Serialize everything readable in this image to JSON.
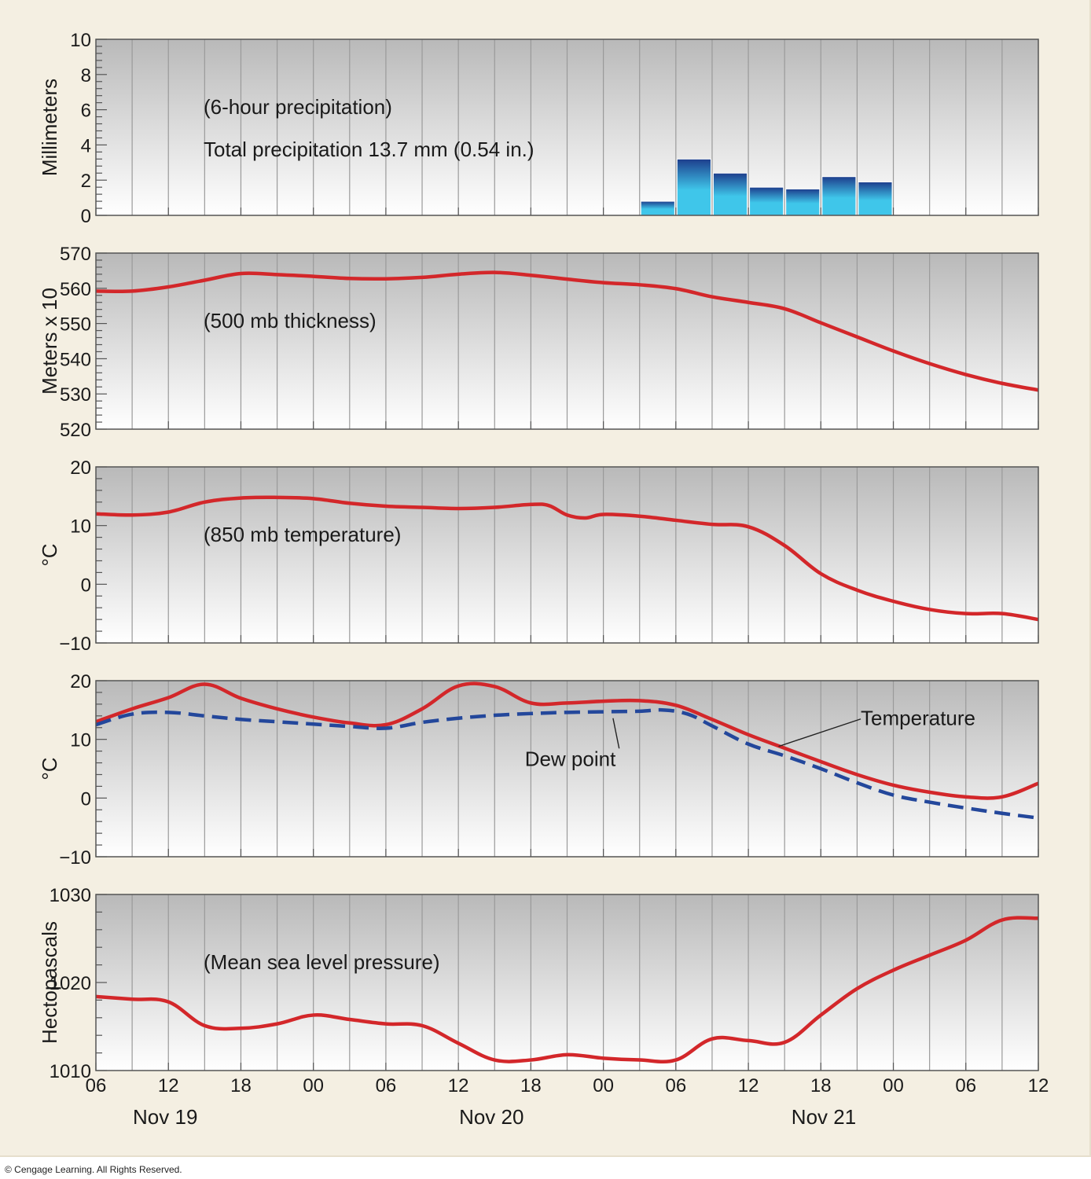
{
  "copyright": "© Cengage Learning. All Rights Reserved.",
  "colors": {
    "panel_top": "#b9b9b9",
    "panel_bottom": "#ffffff",
    "grid": "#9a9a9a",
    "red_line": "#d3272a",
    "dew_line": "#23479b",
    "bar_top": "#1d3d8c",
    "bar_bottom": "#3fc6ea"
  },
  "chart_data": {
    "x_axis": {
      "tick_labels": [
        "06",
        "12",
        "18",
        "00",
        "06",
        "12",
        "18",
        "00",
        "06",
        "12",
        "18",
        "00",
        "06",
        "12"
      ],
      "date_labels": [
        {
          "label": "Nov 19",
          "at_hour": 12
        },
        {
          "label": "Nov 20",
          "at_hour": 39
        },
        {
          "label": "Nov 21",
          "at_hour": 66.5
        }
      ],
      "range_hours": [
        6,
        84
      ],
      "minor_grid_hours": 3
    },
    "panels": [
      {
        "id": "precip",
        "type": "bar",
        "ylabel": "Millimeters",
        "ylim": [
          0,
          10
        ],
        "yticks": [
          "0",
          "2",
          "4",
          "6",
          "8",
          "10"
        ],
        "annotations": [
          "(6-hour precipitation)",
          "Total precipitation 13.7 mm (0.54 in.)"
        ],
        "bars": [
          {
            "x": [
              51,
              54
            ],
            "value": 0.8
          },
          {
            "x": [
              54,
              57
            ],
            "value": 3.2
          },
          {
            "x": [
              57,
              60
            ],
            "value": 2.4
          },
          {
            "x": [
              60,
              63
            ],
            "value": 1.6
          },
          {
            "x": [
              63,
              66
            ],
            "value": 1.5
          },
          {
            "x": [
              66,
              69
            ],
            "value": 2.2
          },
          {
            "x": [
              69,
              72
            ],
            "value": 1.9
          }
        ]
      },
      {
        "id": "thickness",
        "type": "line",
        "ylabel": "Meters x 10",
        "ylim": [
          520,
          570
        ],
        "yticks": [
          "520",
          "530",
          "540",
          "550",
          "560",
          "570"
        ],
        "annotations": [
          "(500 mb thickness)"
        ],
        "series": [
          {
            "style": "solid",
            "points": [
              [
                6,
                559.2
              ],
              [
                9,
                559.2
              ],
              [
                12,
                560.4
              ],
              [
                15,
                562.3
              ],
              [
                18,
                564.2
              ],
              [
                21,
                563.9
              ],
              [
                24,
                563.4
              ],
              [
                27,
                562.8
              ],
              [
                30,
                562.7
              ],
              [
                33,
                563.1
              ],
              [
                36,
                564.0
              ],
              [
                39,
                564.5
              ],
              [
                42,
                563.7
              ],
              [
                45,
                562.6
              ],
              [
                48,
                561.6
              ],
              [
                51,
                561.0
              ],
              [
                54,
                559.9
              ],
              [
                57,
                557.6
              ],
              [
                60,
                556.0
              ],
              [
                63,
                554.2
              ],
              [
                66,
                550.2
              ],
              [
                69,
                546.2
              ],
              [
                72,
                542.2
              ],
              [
                75,
                538.6
              ],
              [
                78,
                535.5
              ],
              [
                81,
                533.0
              ],
              [
                84,
                531.1
              ]
            ]
          }
        ]
      },
      {
        "id": "t850",
        "type": "line",
        "ylabel": "°C",
        "ylim": [
          -10,
          20
        ],
        "yticks": [
          "−10",
          "0",
          "10",
          "20"
        ],
        "annotations": [
          "(850 mb temperature)"
        ],
        "series": [
          {
            "style": "solid",
            "points": [
              [
                6,
                12
              ],
              [
                9,
                11.8
              ],
              [
                12,
                12.3
              ],
              [
                15,
                14
              ],
              [
                18,
                14.7
              ],
              [
                21,
                14.8
              ],
              [
                24,
                14.6
              ],
              [
                27,
                13.8
              ],
              [
                30,
                13.3
              ],
              [
                33,
                13.1
              ],
              [
                36,
                12.9
              ],
              [
                39,
                13.1
              ],
              [
                42,
                13.6
              ],
              [
                43.5,
                13.4
              ],
              [
                45,
                11.8
              ],
              [
                46.5,
                11.3
              ],
              [
                48,
                11.9
              ],
              [
                51,
                11.6
              ],
              [
                54,
                10.9
              ],
              [
                57,
                10.2
              ],
              [
                60,
                9.8
              ],
              [
                63,
                6.6
              ],
              [
                66,
                1.8
              ],
              [
                69,
                -1
              ],
              [
                72,
                -2.9
              ],
              [
                75,
                -4.3
              ],
              [
                78,
                -5
              ],
              [
                81,
                -5
              ],
              [
                84,
                -6
              ]
            ]
          }
        ]
      },
      {
        "id": "surface",
        "type": "line",
        "ylabel": "°C",
        "ylim": [
          -10,
          20
        ],
        "yticks": [
          "−10",
          "0",
          "10",
          "20"
        ],
        "annotations": [],
        "labels": [
          {
            "text": "Temperature",
            "at": [
              69.3,
              12.4
            ],
            "pointer_to": [
              62.5,
              8.8
            ]
          },
          {
            "text": "Dew point",
            "at": [
              41.5,
              5.5
            ],
            "pointer_to": [
              48.8,
              13.6
            ]
          }
        ],
        "series": [
          {
            "name": "Temperature",
            "style": "solid",
            "points": [
              [
                6,
                13
              ],
              [
                9,
                15.2
              ],
              [
                12,
                17.1
              ],
              [
                15,
                19.4
              ],
              [
                18,
                17
              ],
              [
                21,
                15.2
              ],
              [
                24,
                13.8
              ],
              [
                27,
                12.8
              ],
              [
                30,
                12.5
              ],
              [
                33,
                15.2
              ],
              [
                36,
                19.1
              ],
              [
                39,
                19
              ],
              [
                42,
                16.2
              ],
              [
                45,
                16.2
              ],
              [
                48,
                16.5
              ],
              [
                51,
                16.6
              ],
              [
                54,
                15.8
              ],
              [
                57,
                13.4
              ],
              [
                60,
                10.8
              ],
              [
                63,
                8.5
              ],
              [
                66,
                6.2
              ],
              [
                69,
                4
              ],
              [
                72,
                2.2
              ],
              [
                75,
                1
              ],
              [
                78,
                0.2
              ],
              [
                81,
                0.2
              ],
              [
                84,
                2.5
              ]
            ]
          },
          {
            "name": "Dew point",
            "style": "dashed",
            "points": [
              [
                6,
                12.5
              ],
              [
                9,
                14.3
              ],
              [
                12,
                14.6
              ],
              [
                15,
                14
              ],
              [
                18,
                13.4
              ],
              [
                21,
                13
              ],
              [
                24,
                12.6
              ],
              [
                27,
                12.2
              ],
              [
                30,
                11.9
              ],
              [
                33,
                12.9
              ],
              [
                36,
                13.6
              ],
              [
                39,
                14.1
              ],
              [
                42,
                14.4
              ],
              [
                45,
                14.6
              ],
              [
                48,
                14.7
              ],
              [
                51,
                14.8
              ],
              [
                53,
                15
              ],
              [
                55,
                14.3
              ],
              [
                57,
                12.3
              ],
              [
                60,
                9.2
              ],
              [
                63,
                7.2
              ],
              [
                66,
                5
              ],
              [
                69,
                2.6
              ],
              [
                72,
                0.5
              ],
              [
                75,
                -0.7
              ],
              [
                78,
                -1.7
              ],
              [
                81,
                -2.6
              ],
              [
                84,
                -3.4
              ]
            ]
          }
        ]
      },
      {
        "id": "mslp",
        "type": "line",
        "ylabel": "Hectopascals",
        "ylim": [
          1010,
          1030
        ],
        "yticks": [
          "1010",
          "1020",
          "1030"
        ],
        "annotations": [
          "(Mean sea level pressure)"
        ],
        "series": [
          {
            "style": "solid",
            "points": [
              [
                6,
                1018.4
              ],
              [
                9,
                1018.1
              ],
              [
                12,
                1017.8
              ],
              [
                15,
                1015.1
              ],
              [
                18,
                1014.8
              ],
              [
                21,
                1015.3
              ],
              [
                24,
                1016.3
              ],
              [
                27,
                1015.8
              ],
              [
                30,
                1015.3
              ],
              [
                33,
                1015.1
              ],
              [
                36,
                1013.1
              ],
              [
                39,
                1011.2
              ],
              [
                42,
                1011.2
              ],
              [
                45,
                1011.8
              ],
              [
                48,
                1011.4
              ],
              [
                51,
                1011.2
              ],
              [
                54,
                1011.2
              ],
              [
                57,
                1013.6
              ],
              [
                60,
                1013.4
              ],
              [
                63,
                1013.2
              ],
              [
                66,
                1016.3
              ],
              [
                69,
                1019.3
              ],
              [
                72,
                1021.4
              ],
              [
                75,
                1023.1
              ],
              [
                78,
                1024.8
              ],
              [
                81,
                1027.1
              ],
              [
                84,
                1027.3
              ]
            ]
          }
        ]
      }
    ]
  }
}
